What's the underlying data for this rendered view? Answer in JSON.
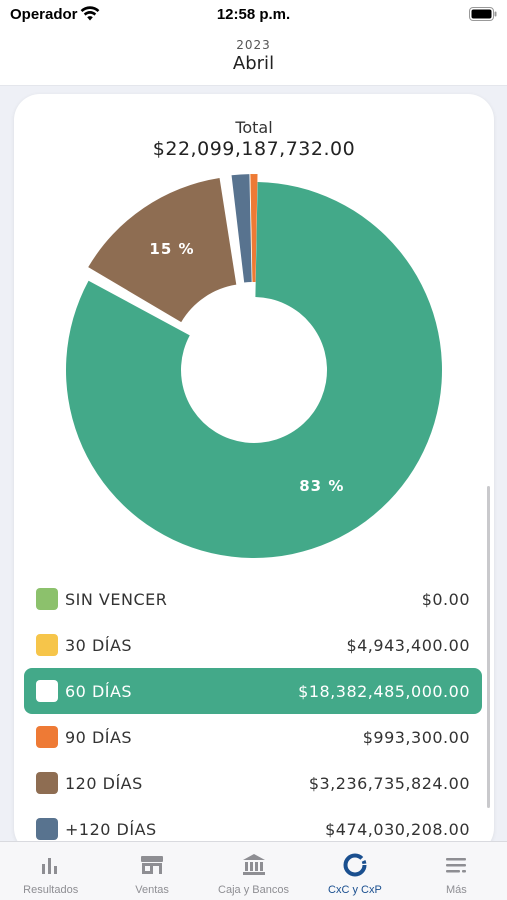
{
  "status": {
    "carrier": "Operador",
    "time": "12:58 p.m."
  },
  "header": {
    "year": "2023",
    "month": "Abril"
  },
  "summary": {
    "total_label": "Total",
    "total_value": "$22,099,187,732.00"
  },
  "colors": {
    "accent": "#43a989",
    "sin_vencer": "#8cc16c",
    "d30": "#f6c54a",
    "d60": "#43a989",
    "d90": "#ee7a35",
    "d120": "#8e6d52",
    "d120plus": "#58738f",
    "tab_active": "#1a4f8f"
  },
  "chart_data": {
    "type": "pie",
    "style": "donut",
    "selected": "60 DÍAS",
    "slices": [
      {
        "name": "60 DÍAS",
        "value": 18382485000.0,
        "percent_label": "83 %",
        "color": "#43a989"
      },
      {
        "name": "120 DÍAS",
        "value": 3236735824.0,
        "percent_label": "15 %",
        "color": "#8e6d52"
      },
      {
        "name": "+120 DÍAS",
        "value": 474030208.0,
        "percent_label": "",
        "color": "#58738f"
      },
      {
        "name": "30 DÍAS",
        "value": 4943400.0,
        "percent_label": "",
        "color": "#f6c54a"
      },
      {
        "name": "90 DÍAS",
        "value": 993300.0,
        "percent_label": "",
        "color": "#ee7a35"
      },
      {
        "name": "SIN VENCER",
        "value": 0.0,
        "percent_label": "",
        "color": "#8cc16c"
      }
    ]
  },
  "legend": [
    {
      "name": "SIN VENCER",
      "amount": "$0.00",
      "color": "#8cc16c",
      "selected": false
    },
    {
      "name": "30 DÍAS",
      "amount": "$4,943,400.00",
      "color": "#f6c54a",
      "selected": false
    },
    {
      "name": "60 DÍAS",
      "amount": "$18,382,485,000.00",
      "color": "#ffffff",
      "selected": true
    },
    {
      "name": "90 DÍAS",
      "amount": "$993,300.00",
      "color": "#ee7a35",
      "selected": false
    },
    {
      "name": "120 DÍAS",
      "amount": "$3,236,735,824.00",
      "color": "#8e6d52",
      "selected": false
    },
    {
      "name": "+120 DÍAS",
      "amount": "$474,030,208.00",
      "color": "#58738f",
      "selected": false
    }
  ],
  "tabs": [
    {
      "label": "Resultados",
      "icon": "bar-chart-icon",
      "active": false
    },
    {
      "label": "Ventas",
      "icon": "store-icon",
      "active": false
    },
    {
      "label": "Caja y Bancos",
      "icon": "bank-icon",
      "active": false
    },
    {
      "label": "CxC y CxP",
      "icon": "ring-icon",
      "active": true
    },
    {
      "label": "Más",
      "icon": "menu-icon",
      "active": false
    }
  ]
}
